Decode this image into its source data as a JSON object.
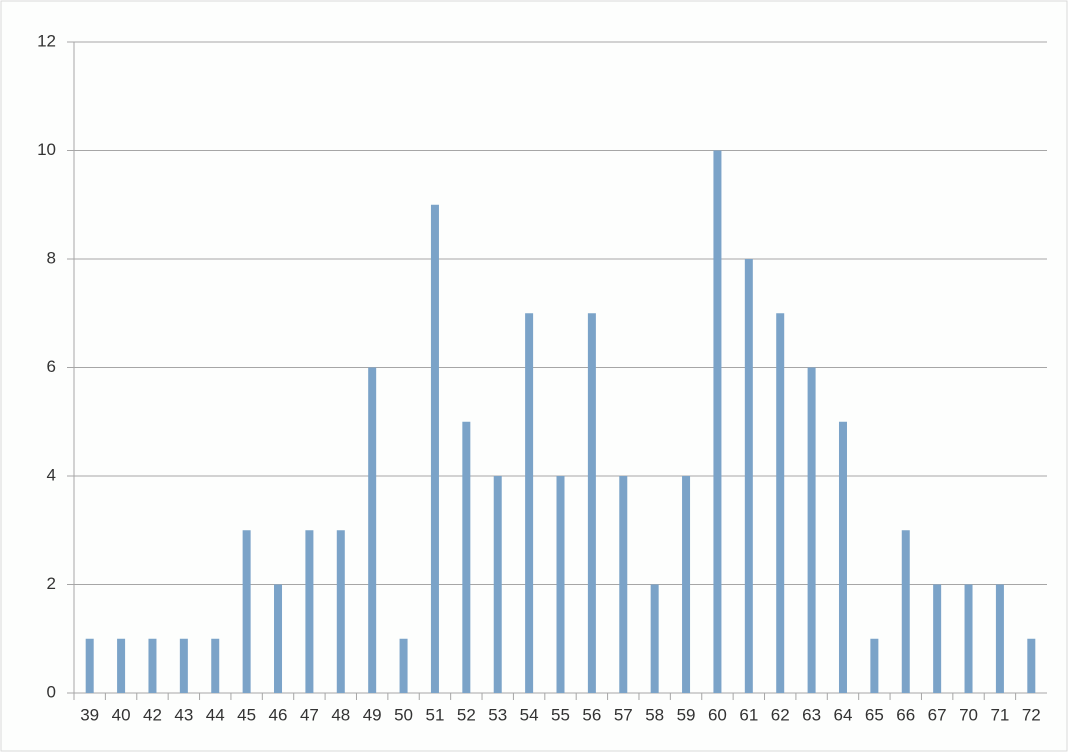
{
  "chart_data": {
    "type": "bar",
    "categories": [
      "39",
      "40",
      "42",
      "43",
      "44",
      "45",
      "46",
      "47",
      "48",
      "49",
      "50",
      "51",
      "52",
      "53",
      "54",
      "55",
      "56",
      "57",
      "58",
      "59",
      "60",
      "61",
      "62",
      "63",
      "64",
      "65",
      "66",
      "67",
      "70",
      "71",
      "72"
    ],
    "values": [
      1,
      1,
      1,
      1,
      1,
      3,
      2,
      3,
      3,
      6,
      1,
      9,
      5,
      4,
      7,
      4,
      7,
      4,
      2,
      4,
      10,
      8,
      7,
      6,
      5,
      1,
      3,
      2,
      2,
      2,
      1
    ],
    "color": "#7ba3c8",
    "ylim": [
      0,
      12
    ],
    "yticks": [
      0,
      2,
      4,
      6,
      8,
      10,
      12
    ],
    "grid": true
  }
}
